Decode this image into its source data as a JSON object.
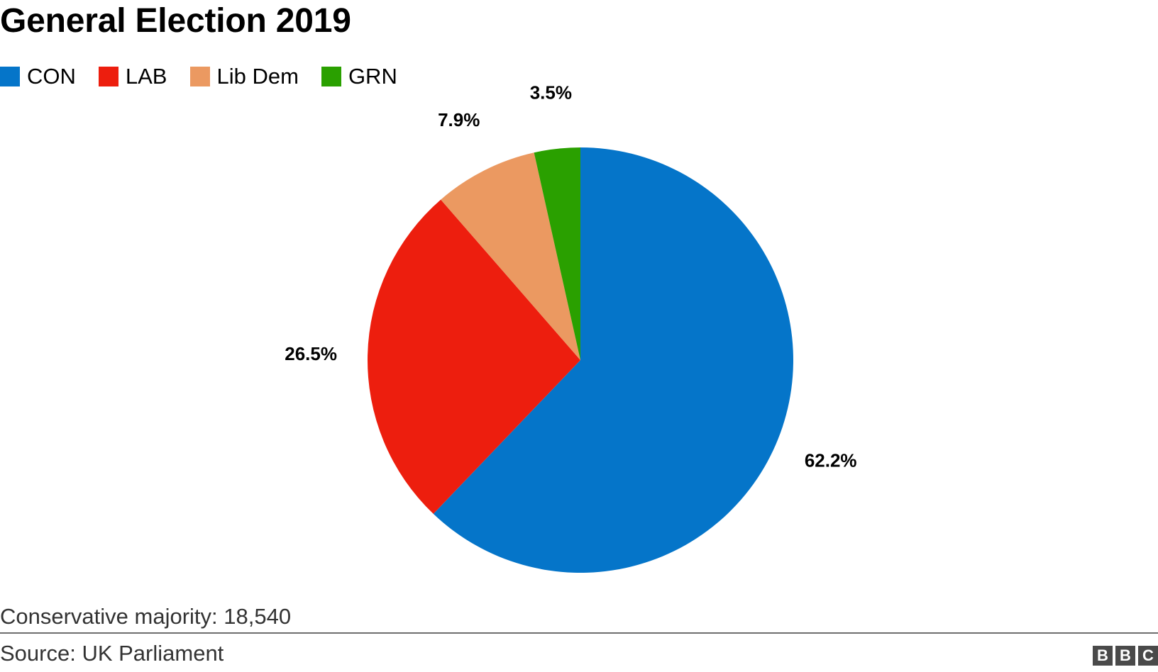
{
  "header": {
    "title": "General Election 2019"
  },
  "legend": {
    "items": [
      {
        "label": "CON",
        "color": "#0575c9"
      },
      {
        "label": "LAB",
        "color": "#ed1e0e"
      },
      {
        "label": "Lib Dem",
        "color": "#eb9961"
      },
      {
        "label": "GRN",
        "color": "#2aa000"
      }
    ]
  },
  "chart_data": {
    "type": "pie",
    "title": "General Election 2019",
    "categories": [
      "CON",
      "LAB",
      "Lib Dem",
      "GRN"
    ],
    "values": [
      62.2,
      26.5,
      7.9,
      3.5
    ],
    "value_labels": [
      "62.2%",
      "26.5%",
      "7.9%",
      "3.5%"
    ],
    "colors": [
      "#0575c9",
      "#ed1e0e",
      "#eb9961",
      "#2aa000"
    ],
    "start_angle_deg": 0,
    "direction": "clockwise",
    "legend_position": "top-left"
  },
  "footer": {
    "note": "Conservative majority: 18,540",
    "source": "Source: UK Parliament",
    "logo_letters": [
      "B",
      "B",
      "C"
    ]
  }
}
